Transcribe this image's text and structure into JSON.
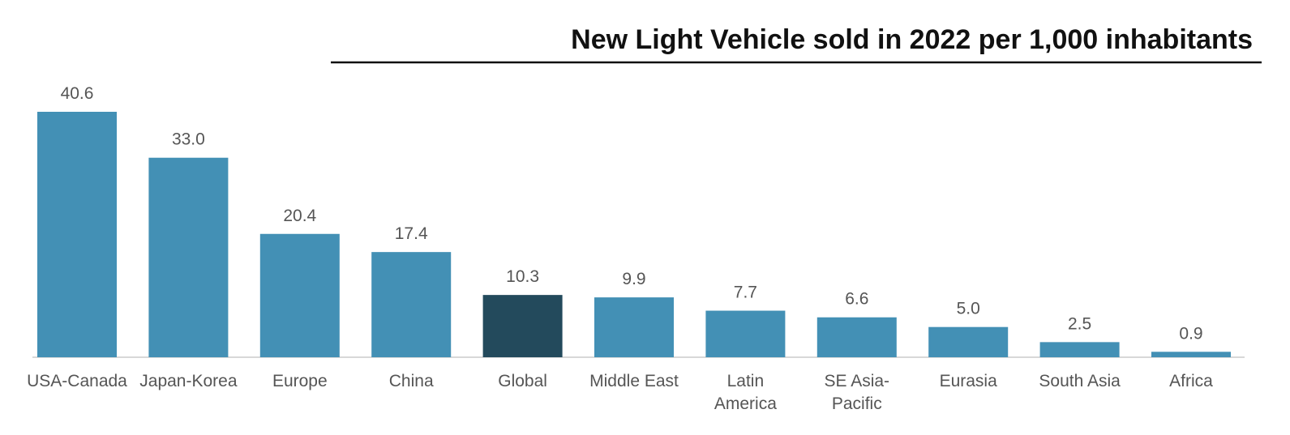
{
  "chart_data": {
    "type": "bar",
    "title": "New Light Vehicle sold in 2022 per 1,000 inhabitants",
    "categories": [
      "USA-Canada",
      "Japan-Korea",
      "Europe",
      "China",
      "Global",
      "Middle East",
      "Latin\nAmerica",
      "SE Asia-\nPacific",
      "Eurasia",
      "South Asia",
      "Africa"
    ],
    "values": [
      40.6,
      33.0,
      20.4,
      17.4,
      10.3,
      9.9,
      7.7,
      6.6,
      5.0,
      2.5,
      0.9
    ],
    "value_labels": [
      "40.6",
      "33.0",
      "20.4",
      "17.4",
      "10.3",
      "9.9",
      "7.7",
      "6.6",
      "5.0",
      "2.5",
      "0.9"
    ],
    "colors": [
      "#4390b5",
      "#4390b5",
      "#4390b5",
      "#4390b5",
      "#234a5c",
      "#4390b5",
      "#4390b5",
      "#4390b5",
      "#4390b5",
      "#4390b5",
      "#4390b5"
    ]
  }
}
